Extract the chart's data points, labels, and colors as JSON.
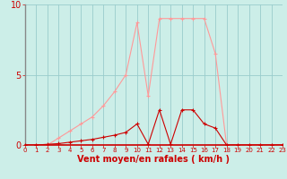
{
  "x": [
    0,
    1,
    2,
    3,
    4,
    5,
    6,
    7,
    8,
    9,
    10,
    11,
    12,
    13,
    14,
    15,
    16,
    17,
    18,
    19,
    20,
    21,
    22,
    23
  ],
  "vent_moyen": [
    0.0,
    0.0,
    0.05,
    0.1,
    0.2,
    0.3,
    0.4,
    0.55,
    0.7,
    0.9,
    1.5,
    0.05,
    2.5,
    0.05,
    2.5,
    2.5,
    1.5,
    1.2,
    0.0,
    0.0,
    0.0,
    0.0,
    0.0,
    0.0
  ],
  "rafales": [
    0.0,
    0.0,
    0.0,
    0.5,
    1.0,
    1.5,
    2.0,
    2.8,
    3.8,
    5.0,
    8.7,
    3.5,
    9.0,
    9.0,
    9.0,
    9.0,
    9.0,
    6.5,
    0.0,
    0.0,
    0.0,
    0.0,
    0.0,
    0.0
  ],
  "color_moyen": "#cc0000",
  "color_rafales": "#ff9999",
  "bg_color": "#cceee8",
  "grid_color": "#99cccc",
  "xlabel": "Vent moyen/en rafales ( km/h )",
  "yticks": [
    0,
    5,
    10
  ],
  "ylim": [
    0,
    10
  ],
  "xlim": [
    0,
    23
  ],
  "tick_color": "#cc0000",
  "xlabel_fontsize": 7,
  "tick_fontsize_x": 5,
  "tick_fontsize_y": 7
}
